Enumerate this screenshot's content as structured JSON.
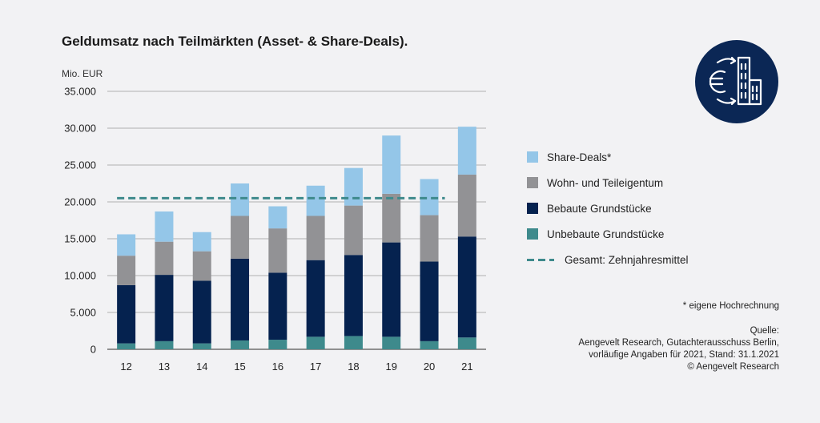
{
  "title": "Geldumsatz nach Teilmärkten (Asset- & Share-Deals).",
  "unit": "Mio. EUR",
  "legend": {
    "share": "Share-Deals*",
    "wohn": "Wohn- und Teileigentum",
    "bebaut": "Bebaute Grundstücke",
    "unbebaut": "Unbebaute Grundstücke",
    "mittel": "Gesamt: Zehnjahresmittel"
  },
  "footnote": "* eigene Hochrechnung",
  "source": {
    "line1": "Quelle:",
    "line2": "Aengevelt Research, Gutachterausschuss Berlin,",
    "line3": "vorläufige Angaben für 2021, Stand: 31.1.2021",
    "line4": "© Aengevelt Research"
  },
  "colors": {
    "share": "#94c6e8",
    "wohn": "#929295",
    "bebaut": "#05224f",
    "unbebaut": "#3e8a8c",
    "mittel": "#3e8a8c",
    "logo_bg": "#0b2755"
  },
  "chart_data": {
    "type": "bar",
    "stacked": true,
    "categories": [
      "12",
      "13",
      "14",
      "15",
      "16",
      "17",
      "18",
      "19",
      "20",
      "21"
    ],
    "series": [
      {
        "name": "Unbebaute Grundstücke",
        "key": "unbebaut",
        "values": [
          800,
          1100,
          800,
          1200,
          1300,
          1700,
          1800,
          1700,
          1100,
          1600
        ]
      },
      {
        "name": "Bebaute Grundstücke",
        "key": "bebaut",
        "values": [
          7900,
          9000,
          8500,
          11100,
          9100,
          10400,
          11000,
          12800,
          10800,
          13700
        ]
      },
      {
        "name": "Wohn- und Teileigentum",
        "key": "wohn",
        "values": [
          4000,
          4500,
          4000,
          5800,
          6000,
          6000,
          6700,
          6600,
          6300,
          8400
        ]
      },
      {
        "name": "Share-Deals*",
        "key": "share",
        "values": [
          2900,
          4100,
          2600,
          4400,
          3000,
          4100,
          5100,
          7900,
          4900,
          6500
        ]
      }
    ],
    "average": {
      "name": "Gesamt: Zehnjahresmittel",
      "value": 20500
    },
    "yticks": [
      0,
      5000,
      10000,
      15000,
      20000,
      25000,
      30000,
      35000
    ],
    "ytick_labels": [
      "0",
      "5.000",
      "10.000",
      "15.000",
      "20.000",
      "25.000",
      "30.000",
      "35.000"
    ],
    "ylim": [
      0,
      35000
    ],
    "ylabel": "Mio. EUR",
    "xlabel": "",
    "grid": true,
    "legend_position": "right"
  }
}
